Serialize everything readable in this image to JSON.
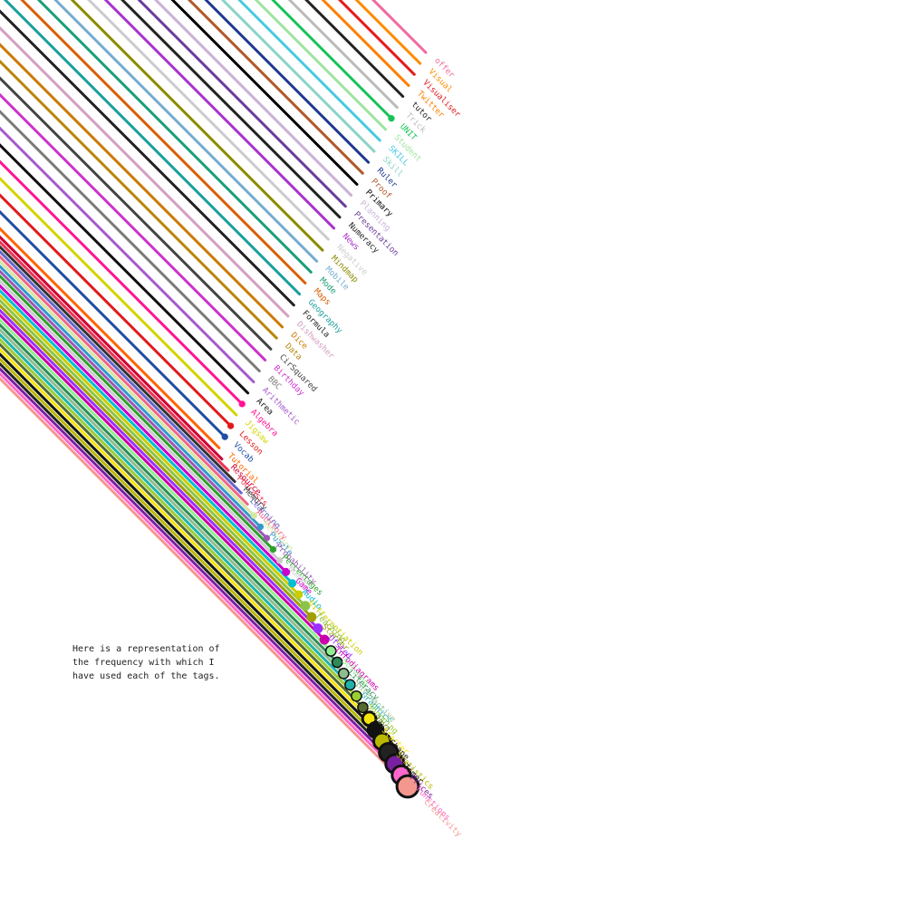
{
  "caption": {
    "lines": [
      "Here is a representation of",
      "the frequency with which I",
      "have used each of the tags."
    ]
  },
  "chart_data": {
    "type": "radial-lines",
    "description_note": "",
    "tags": [
      {
        "name": "offer",
        "count": 1,
        "color": "#f06aa0",
        "has_end": false,
        "label": true
      },
      {
        "name": "Visual",
        "count": 1,
        "color": "#ff8c00",
        "has_end": false,
        "label": true
      },
      {
        "name": "Visualiser",
        "count": 1,
        "color": "#e31a1c",
        "has_end": false,
        "label": true
      },
      {
        "name": "Twitter",
        "count": 1,
        "color": "#ff7f00",
        "has_end": false,
        "label": true
      },
      {
        "name": "tutor",
        "count": 1,
        "color": "#222222",
        "has_end": false,
        "label": true
      },
      {
        "name": "Trick",
        "count": 1,
        "color": "#bbbbbb",
        "has_end": false,
        "label": true
      },
      {
        "name": "UNIT",
        "count": 1,
        "color": "#18c25a",
        "has_end": true,
        "label": true
      },
      {
        "name": "Student",
        "count": 1,
        "color": "#a0e3a0",
        "has_end": false,
        "label": true
      },
      {
        "name": "SKILL",
        "count": 1,
        "color": "#48c9e0",
        "has_end": false,
        "label": true
      },
      {
        "name": "Skill",
        "count": 1,
        "color": "#8dd3c7",
        "has_end": false,
        "label": true
      },
      {
        "name": "Ruler",
        "count": 1,
        "color": "#1f3a93",
        "has_end": false,
        "label": true
      },
      {
        "name": "Proof",
        "count": 1,
        "color": "#b15928",
        "has_end": false,
        "label": true
      },
      {
        "name": "Primary",
        "count": 1,
        "color": "#000000",
        "has_end": false,
        "label": true
      },
      {
        "name": "Planning",
        "count": 1,
        "color": "#cab2d6",
        "has_end": false,
        "label": true
      },
      {
        "name": "Presentation",
        "count": 1,
        "color": "#6a3d9a",
        "has_end": false,
        "label": true
      },
      {
        "name": "Numeracy",
        "count": 1,
        "color": "#222222",
        "has_end": false,
        "label": true
      },
      {
        "name": "News",
        "count": 1,
        "color": "#aa33cc",
        "has_end": false,
        "label": true
      },
      {
        "name": "Negative",
        "count": 1,
        "color": "#cccccc",
        "has_end": false,
        "label": true
      },
      {
        "name": "Mindmap",
        "count": 1,
        "color": "#8b8b00",
        "has_end": false,
        "label": true
      },
      {
        "name": "Mobile",
        "count": 1,
        "color": "#74add1",
        "has_end": false,
        "label": true
      },
      {
        "name": "Mode",
        "count": 1,
        "color": "#1b9e77",
        "has_end": false,
        "label": true
      },
      {
        "name": "Maps",
        "count": 1,
        "color": "#d95f02",
        "has_end": false,
        "label": true
      },
      {
        "name": "Geography",
        "count": 1,
        "color": "#1b9e9e",
        "has_end": false,
        "label": true
      },
      {
        "name": "Formula",
        "count": 1,
        "color": "#222222",
        "has_end": false,
        "label": true
      },
      {
        "name": "Dishwasher",
        "count": 1,
        "color": "#d4a0c0",
        "has_end": false,
        "label": true
      },
      {
        "name": "Dice",
        "count": 1,
        "color": "#cc7a00",
        "has_end": false,
        "label": true
      },
      {
        "name": "Data",
        "count": 1,
        "color": "#b8860b",
        "has_end": false,
        "label": true
      },
      {
        "name": "CirSquared",
        "count": 1,
        "color": "#444444",
        "has_end": false,
        "label": true
      },
      {
        "name": "Birthday",
        "count": 1,
        "color": "#cc33cc",
        "has_end": false,
        "label": true
      },
      {
        "name": "BBC",
        "count": 1,
        "color": "#7a7a7a",
        "has_end": false,
        "label": true
      },
      {
        "name": "Arithmetic",
        "count": 1,
        "color": "#a65ccc",
        "has_end": false,
        "label": true
      },
      {
        "name": "Area",
        "count": 1,
        "color": "#111111",
        "has_end": false,
        "label": true
      },
      {
        "name": "Algebra",
        "count": 1,
        "color": "#ff1493",
        "has_end": true,
        "label": true
      },
      {
        "name": "Jigsaw",
        "count": 1,
        "color": "#d4d400",
        "has_end": false,
        "label": true
      },
      {
        "name": "Lesson",
        "count": 1,
        "color": "#e31a1c",
        "has_end": true,
        "label": true
      },
      {
        "name": "Vocab",
        "count": 1,
        "color": "#1f4ea3",
        "has_end": true,
        "label": true
      },
      {
        "name": "Tutorial",
        "count": 1,
        "color": "#ff6600",
        "has_end": false,
        "label": true
      },
      {
        "name": "Resource",
        "count": 1,
        "color": "#cc0033",
        "has_end": false,
        "label": true
      },
      {
        "name": "Podcasts",
        "count": 1,
        "color": "#ee3355",
        "has_end": false,
        "label": true
      },
      {
        "name": "Memory",
        "count": 1,
        "color": "#333333",
        "has_end": false,
        "label": true
      },
      {
        "name": "Learning",
        "count": 1,
        "color": "#6666cc",
        "has_end": false,
        "label": true
      },
      {
        "name": "Auditory",
        "count": 1,
        "color": "#ee6688",
        "has_end": false,
        "label": true
      },
      {
        "name": "Revision",
        "count": 1,
        "color": "#d4e6a0",
        "has_end": true,
        "label": true
      },
      {
        "name": "Puzzle",
        "count": 1,
        "color": "#3399cc",
        "has_end": true,
        "label": true
      },
      {
        "name": "Probability",
        "count": 1,
        "color": "#9b59b6",
        "has_end": true,
        "label": true
      },
      {
        "name": "Percentages",
        "count": 1,
        "color": "#2ca02c",
        "has_end": true,
        "label": true
      },
      {
        "name": "Number",
        "count": 1,
        "color": "#cccccc",
        "has_end": true,
        "label": true
      },
      {
        "name": "Game",
        "count": 2,
        "color": "#cc00cc",
        "has_end": true,
        "label": true
      },
      {
        "name": "Audio",
        "count": 2,
        "color": "#00bcd4",
        "has_end": true,
        "label": true
      },
      {
        "name": "Differentiation",
        "count": 2,
        "color": "#cccc00",
        "has_end": true,
        "label": true
      },
      {
        "name": "Teaching",
        "count": 3,
        "color": "#8bc34a",
        "has_end": true,
        "label": true
      },
      {
        "name": "Starter",
        "count": 3,
        "color": "#a0a000",
        "has_end": true,
        "label": true
      },
      {
        "name": "Ofsted",
        "count": 3,
        "color": "#9b30ff",
        "has_end": true,
        "label": true
      },
      {
        "name": "Infodiagrams",
        "count": 3,
        "color": "#cc00aa",
        "has_end": true,
        "label": true
      },
      {
        "name": "Solving",
        "count": 4,
        "color": "#90ee90",
        "has_end": true,
        "label": true
      },
      {
        "name": "Literacy",
        "count": 4,
        "color": "#2e8b57",
        "has_end": true,
        "label": true
      },
      {
        "name": "Interactive",
        "count": 4,
        "color": "#8fbc8f",
        "has_end": true,
        "label": true
      },
      {
        "name": "Graphics",
        "count": 4,
        "color": "#20b2aa",
        "has_end": true,
        "label": true
      },
      {
        "name": "Shopping",
        "count": 4,
        "color": "#9acd32",
        "has_end": true,
        "label": true
      },
      {
        "name": "Java",
        "count": 4,
        "color": "#556b2f",
        "has_end": true,
        "label": true
      },
      {
        "name": "Starter",
        "count": 6,
        "color": "#f5e50a",
        "has_end": true,
        "label": true
      },
      {
        "name": "Shape",
        "count": 7,
        "color": "#111111",
        "has_end": true,
        "label": true
      },
      {
        "name": "Statistics",
        "count": 8,
        "color": "#b8b800",
        "has_end": true,
        "label": true
      },
      {
        "name": "Timer",
        "count": 9,
        "color": "#222222",
        "has_end": true,
        "label": true
      },
      {
        "name": "Prices",
        "count": 9,
        "color": "#7b1fa2",
        "has_end": true,
        "label": true
      },
      {
        "name": "Functions",
        "count": 9,
        "color": "#ff66cc",
        "has_end": true,
        "label": true
      },
      {
        "name": "Creativity",
        "count": 11,
        "color": "#f4978e",
        "has_end": true,
        "label": true
      }
    ]
  }
}
